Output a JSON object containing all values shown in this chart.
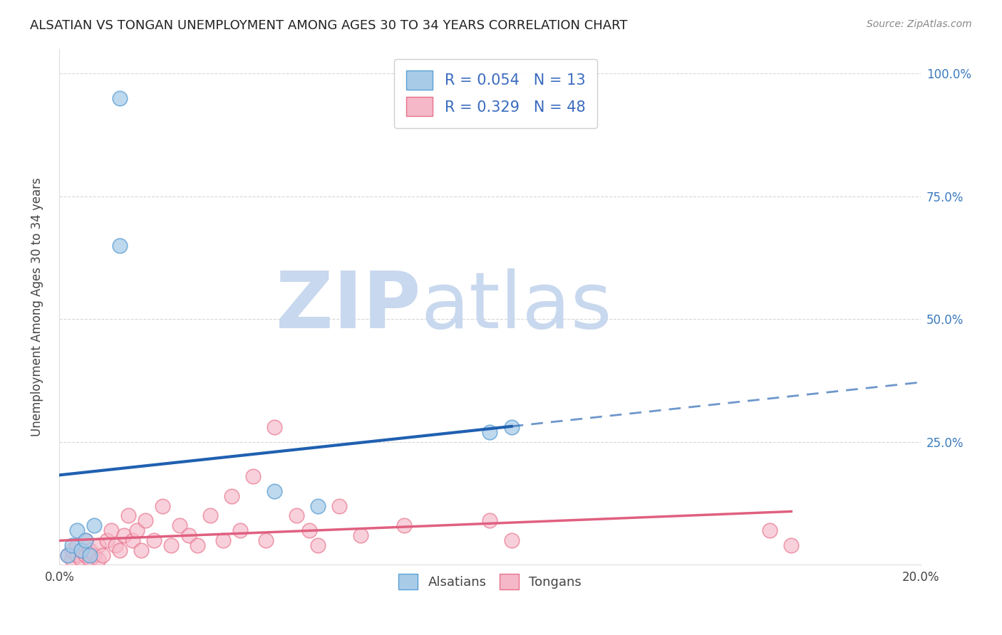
{
  "title": "ALSATIAN VS TONGAN UNEMPLOYMENT AMONG AGES 30 TO 34 YEARS CORRELATION CHART",
  "source": "Source: ZipAtlas.com",
  "ylabel": "Unemployment Among Ages 30 to 34 years",
  "xlim": [
    0.0,
    0.2
  ],
  "ylim": [
    0.0,
    1.05
  ],
  "alsatian_color": "#a8cce8",
  "alsatian_edge": "#5b9fd4",
  "tongan_color": "#f5b8c8",
  "tongan_edge": "#e8708a",
  "alsatian_R": 0.054,
  "alsatian_N": 13,
  "tongan_R": 0.329,
  "tongan_N": 48,
  "legend_text_color": "#3a6bbf",
  "trendline_alsatian_color": "#2060b0",
  "trendline_tongan_color": "#e06080",
  "alsatians_x": [
    0.014,
    0.014,
    0.002,
    0.003,
    0.004,
    0.005,
    0.006,
    0.007,
    0.008,
    0.1,
    0.105,
    0.05,
    0.06
  ],
  "alsatians_y": [
    0.95,
    0.65,
    0.02,
    0.04,
    0.07,
    0.03,
    0.05,
    0.02,
    0.08,
    0.27,
    0.28,
    0.15,
    0.12
  ],
  "tongans_x": [
    0.002,
    0.003,
    0.003,
    0.004,
    0.004,
    0.005,
    0.005,
    0.006,
    0.006,
    0.007,
    0.007,
    0.008,
    0.009,
    0.009,
    0.01,
    0.011,
    0.012,
    0.013,
    0.014,
    0.015,
    0.016,
    0.017,
    0.018,
    0.019,
    0.02,
    0.022,
    0.024,
    0.026,
    0.028,
    0.03,
    0.032,
    0.035,
    0.038,
    0.04,
    0.042,
    0.045,
    0.048,
    0.05,
    0.055,
    0.058,
    0.06,
    0.065,
    0.07,
    0.08,
    0.1,
    0.105,
    0.165,
    0.17
  ],
  "tongans_y": [
    0.02,
    0.01,
    0.03,
    0.02,
    0.04,
    0.01,
    0.03,
    0.02,
    0.05,
    0.01,
    0.03,
    0.02,
    0.01,
    0.04,
    0.02,
    0.05,
    0.07,
    0.04,
    0.03,
    0.06,
    0.1,
    0.05,
    0.07,
    0.03,
    0.09,
    0.05,
    0.12,
    0.04,
    0.08,
    0.06,
    0.04,
    0.1,
    0.05,
    0.14,
    0.07,
    0.18,
    0.05,
    0.28,
    0.1,
    0.07,
    0.04,
    0.12,
    0.06,
    0.08,
    0.09,
    0.05,
    0.07,
    0.04
  ],
  "background_color": "#ffffff",
  "grid_color": "#cccccc",
  "right_tick_color": "#3a7abf"
}
